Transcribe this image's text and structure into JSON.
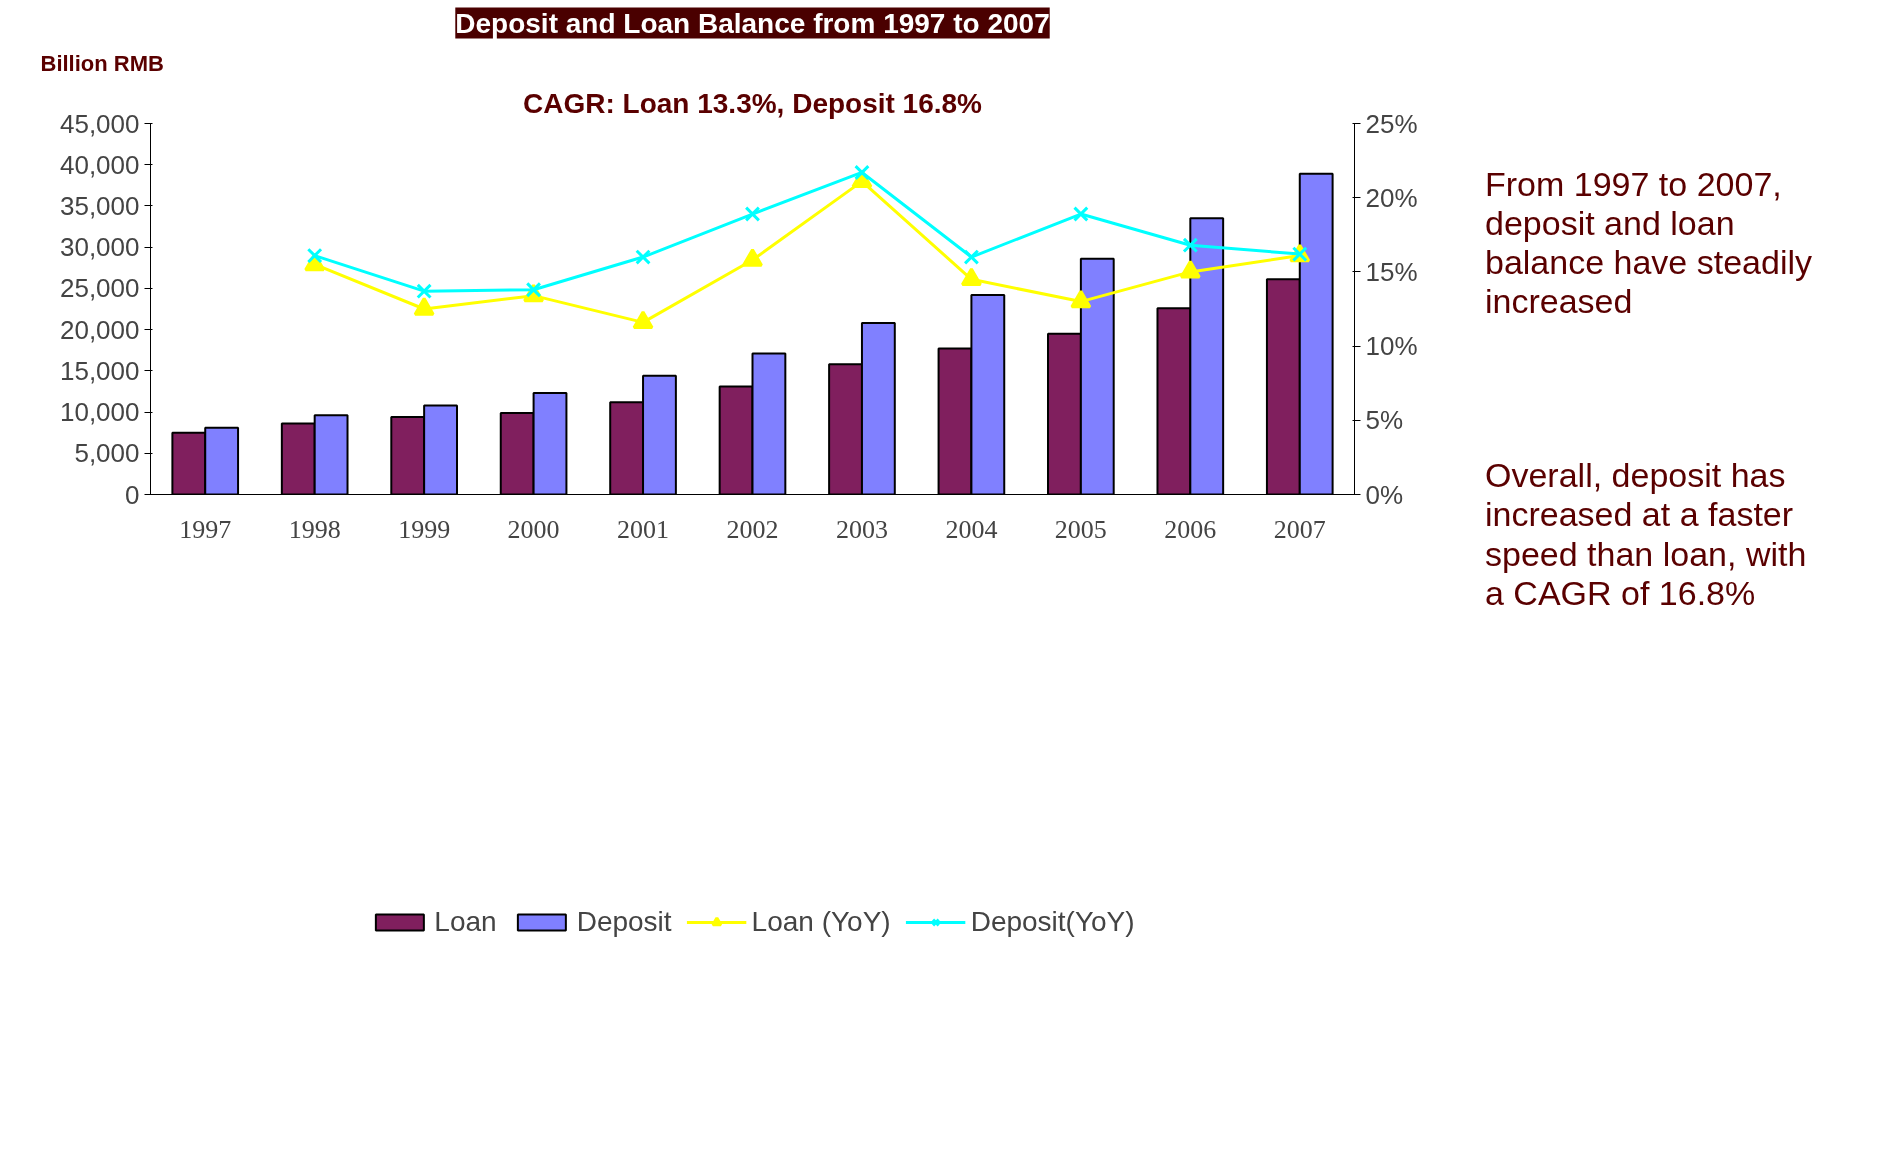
{
  "chart_data": {
    "type": "bar",
    "title": "Deposit and Loan Balance from 1997 to 2007",
    "subtitle": "CAGR: Loan 13.3%, Deposit 16.8%",
    "ylabel": "Billion RMB",
    "categories": [
      "1997",
      "1998",
      "1999",
      "2000",
      "2001",
      "2002",
      "2003",
      "2004",
      "2005",
      "2006",
      "2007"
    ],
    "series": [
      {
        "name": "Loan",
        "color": "#801f5e",
        "values": [
          7500,
          8600,
          9400,
          9900,
          11200,
          13100,
          15800,
          17700,
          19500,
          22600,
          26100
        ]
      },
      {
        "name": "Deposit",
        "color": "#8080ff",
        "values": [
          8100,
          9600,
          10800,
          12300,
          14400,
          17100,
          20800,
          24200,
          28600,
          33500,
          38900
        ]
      },
      {
        "name": "Loan (YoY)",
        "type": "line",
        "axis": "y2",
        "marker": "triangle",
        "color": "#ffff00",
        "values": [
          null,
          15.5,
          12.5,
          13.4,
          11.6,
          15.8,
          21.1,
          14.5,
          13.0,
          15.0,
          16.1
        ]
      },
      {
        "name": "Deposit(YoY)",
        "type": "line",
        "axis": "y2",
        "marker": "cross",
        "color": "#00ffff",
        "values": [
          null,
          16.1,
          13.7,
          13.8,
          16.0,
          18.9,
          21.7,
          16.0,
          18.9,
          16.8,
          16.2
        ]
      }
    ],
    "ylim": [
      0,
      45000
    ],
    "yticks": [
      {
        "value": 0,
        "label": "0"
      },
      {
        "value": 5000,
        "label": "5,000"
      },
      {
        "value": 10000,
        "label": "10,000"
      },
      {
        "value": 15000,
        "label": "15,000"
      },
      {
        "value": 20000,
        "label": "20,000"
      },
      {
        "value": 25000,
        "label": "25,000"
      },
      {
        "value": 30000,
        "label": "30,000"
      },
      {
        "value": 35000,
        "label": "35,000"
      },
      {
        "value": 40000,
        "label": "40,000"
      },
      {
        "value": 45000,
        "label": "45,000"
      }
    ],
    "y2lim": [
      0,
      25
    ],
    "y2ticks": [
      {
        "value": 0,
        "label": "0%"
      },
      {
        "value": 5,
        "label": "5%"
      },
      {
        "value": 10,
        "label": "10%"
      },
      {
        "value": 15,
        "label": "15%"
      },
      {
        "value": 20,
        "label": "20%"
      },
      {
        "value": 25,
        "label": "25%"
      }
    ],
    "legend": "bottom",
    "grid": false,
    "annotations": [
      "From 1997 to 2007, deposit and loan balance have steadily increased",
      "Overall, deposit has increased at a faster speed than loan, with a CAGR of 16.8%"
    ]
  }
}
